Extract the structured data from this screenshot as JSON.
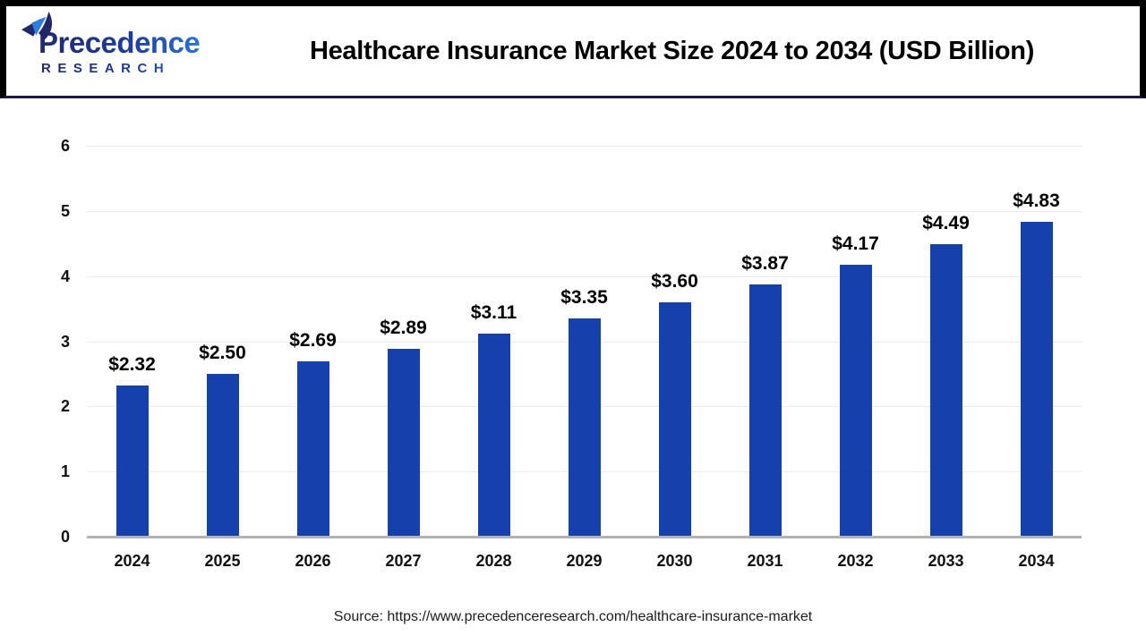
{
  "header": {
    "logo": {
      "name": "Precedence",
      "sub": "RESEARCH",
      "icon": "paper-plane-logo-icon"
    },
    "title": "Healthcare Insurance Market Size 2024 to 2034 (USD Billion)"
  },
  "chart_data": {
    "type": "bar",
    "title": "Healthcare Insurance Market Size 2024 to 2034 (USD Billion)",
    "categories": [
      "2024",
      "2025",
      "2026",
      "2027",
      "2028",
      "2029",
      "2030",
      "2031",
      "2032",
      "2033",
      "2034"
    ],
    "values": [
      2.32,
      2.5,
      2.69,
      2.89,
      3.11,
      3.35,
      3.6,
      3.87,
      4.17,
      4.49,
      4.83
    ],
    "data_labels": [
      "$2.32",
      "$2.50",
      "$2.69",
      "$2.89",
      "$3.11",
      "$3.35",
      "$3.60",
      "$3.87",
      "$4.17",
      "$4.49",
      "$4.83"
    ],
    "xlabel": "",
    "ylabel": "",
    "ylim": [
      0,
      6
    ],
    "yticks": [
      0,
      1,
      2,
      3,
      4,
      5,
      6
    ],
    "grid": true,
    "legend_position": "none",
    "bar_color": "#1641ad"
  },
  "footer": {
    "source": "Source: https://www.precedenceresearch.com/healthcare-insurance-market"
  },
  "colors": {
    "bar": "#1641ad",
    "logo_navy": "#20276b",
    "logo_blue": "#2e7ee2",
    "header_border": "#000000",
    "header_divider": "#1a1a4e",
    "gridline": "#ebebeb",
    "axis_baseline": "#b3b3b3",
    "title_text": "#000000"
  }
}
